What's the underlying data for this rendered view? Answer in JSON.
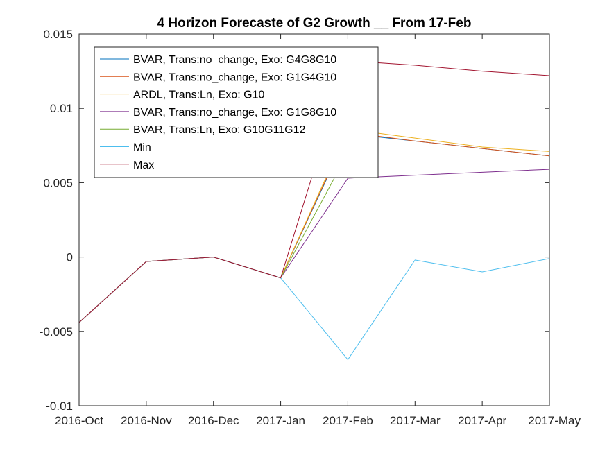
{
  "chart_data": {
    "type": "line",
    "title": "4 Horizon Forecaste of G2 Growth __ From 17-Feb",
    "xlabel": "",
    "ylabel": "",
    "categories": [
      "2016-Oct",
      "2016-Nov",
      "2016-Dec",
      "2017-Jan",
      "2017-Feb",
      "2017-Mar",
      "2017-Apr",
      "2017-May"
    ],
    "ylim": [
      -0.01,
      0.015
    ],
    "yticks": [
      -0.01,
      -0.005,
      0,
      0.005,
      0.01,
      0.015
    ],
    "ytick_labels": [
      "-0.01",
      "-0.005",
      "0",
      "0.005",
      "0.01",
      "0.015"
    ],
    "grid": false,
    "legend_position": "top-left",
    "series": [
      {
        "name": "BVAR, Trans:no_change, Exo: G4G8G10",
        "color": "#0072BD",
        "values": [
          -0.0044,
          -0.0003,
          0.0,
          -0.0014,
          0.0083,
          0.0078,
          0.0073,
          0.0068
        ]
      },
      {
        "name": "BVAR, Trans:no_change, Exo: G1G4G10",
        "color": "#D95319",
        "values": [
          -0.0044,
          -0.0003,
          0.0,
          -0.0014,
          0.0084,
          0.0078,
          0.0073,
          0.0068
        ]
      },
      {
        "name": "ARDL, Trans:Ln, Exo: G10",
        "color": "#EDB120",
        "values": [
          -0.0044,
          -0.0003,
          0.0,
          -0.0014,
          0.0086,
          0.008,
          0.0074,
          0.0071
        ]
      },
      {
        "name": "BVAR, Trans:no_change, Exo: G1G8G10",
        "color": "#7E2F8E",
        "values": [
          -0.0044,
          -0.0003,
          0.0,
          -0.0014,
          0.0053,
          0.0055,
          0.0057,
          0.0059
        ]
      },
      {
        "name": "BVAR, Trans:Ln, Exo: G10G11G12",
        "color": "#77AC30",
        "values": [
          -0.0044,
          -0.0003,
          0.0,
          -0.0014,
          0.007,
          0.007,
          0.007,
          0.007
        ]
      },
      {
        "name": "Min",
        "color": "#4DBEEE",
        "values": [
          -0.0044,
          -0.0003,
          0.0,
          -0.0014,
          -0.0069,
          -0.0002,
          -0.001,
          -0.0001
        ]
      },
      {
        "name": "Max",
        "color": "#A2142F",
        "values": [
          -0.0044,
          -0.0003,
          0.0,
          -0.0014,
          0.0132,
          0.0129,
          0.0125,
          0.0122
        ]
      }
    ]
  }
}
